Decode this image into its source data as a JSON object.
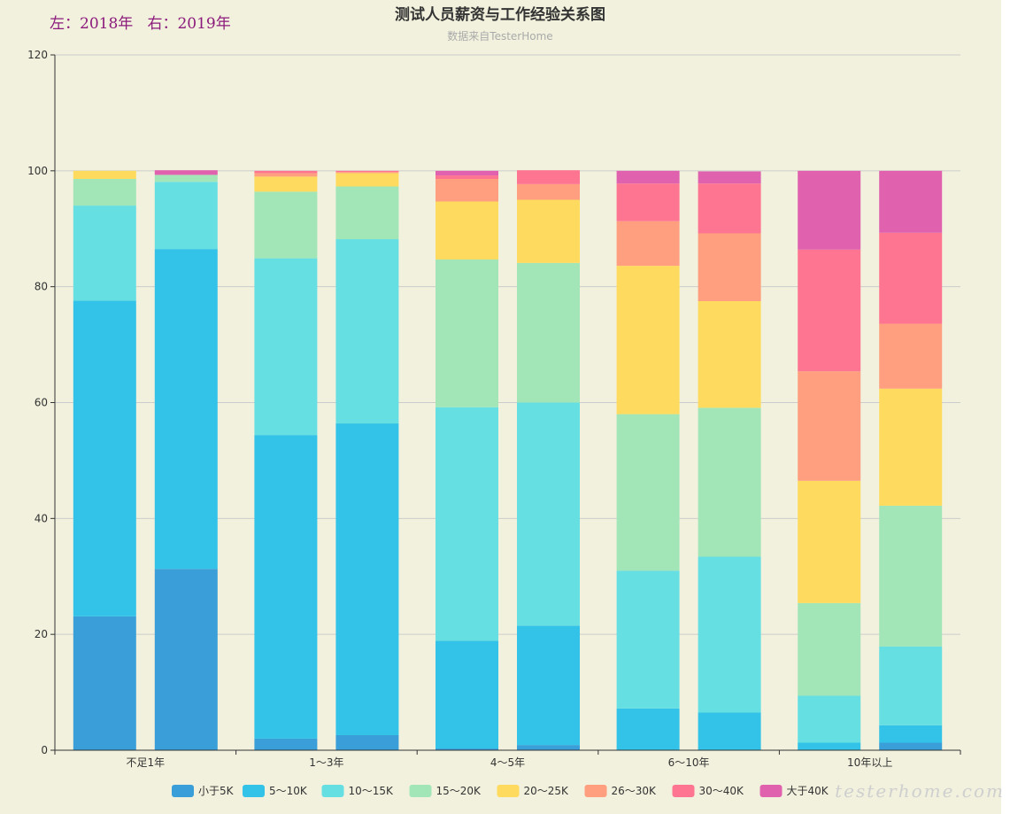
{
  "note": "左：2018年   右：2019年",
  "watermark": "testerhome.com",
  "chart_data": {
    "type": "bar",
    "stacked": true,
    "title": "测试人员薪资与工作经验关系图",
    "subtitle": "数据来自TesterHome",
    "categories": [
      "不足1年",
      "1～3年",
      "4～5年",
      "6～10年",
      "10年以上"
    ],
    "groups": [
      "2018",
      "2019"
    ],
    "ylim": [
      0,
      120
    ],
    "yticks": [
      0,
      20,
      40,
      60,
      80,
      100,
      120
    ],
    "grid": true,
    "legend_position": "bottom-center",
    "series": [
      {
        "name": "小于5K",
        "color": "#3a9fd8",
        "values_2018": [
          23.1,
          2.0,
          0.3,
          0.0,
          0.0
        ],
        "values_2019": [
          31.3,
          2.6,
          0.9,
          0.0,
          1.3
        ]
      },
      {
        "name": "5～10K",
        "color": "#34c3e8",
        "values_2018": [
          54.5,
          52.4,
          18.6,
          7.2,
          1.3
        ],
        "values_2019": [
          55.2,
          53.8,
          20.6,
          6.5,
          3.0
        ]
      },
      {
        "name": "10～15K",
        "color": "#66dfe3",
        "values_2018": [
          16.4,
          30.5,
          40.3,
          23.8,
          8.1
        ],
        "values_2019": [
          11.6,
          31.8,
          38.5,
          26.9,
          13.6
        ]
      },
      {
        "name": "15～20K",
        "color": "#a2e6b8",
        "values_2018": [
          4.6,
          11.5,
          25.5,
          27.0,
          16.0
        ],
        "values_2019": [
          1.2,
          9.1,
          24.1,
          25.7,
          24.3
        ]
      },
      {
        "name": "20～25K",
        "color": "#fedb5e",
        "values_2018": [
          1.4,
          2.6,
          10.0,
          25.6,
          21.1
        ],
        "values_2019": [
          0.0,
          2.3,
          10.9,
          18.4,
          20.2
        ]
      },
      {
        "name": "26～30K",
        "color": "#ff9f7f",
        "values_2018": [
          0.0,
          0.6,
          3.9,
          7.7,
          18.9
        ],
        "values_2019": [
          0.0,
          0.2,
          2.7,
          11.7,
          11.2
        ]
      },
      {
        "name": "30～40K",
        "color": "#fe7591",
        "values_2018": [
          0.0,
          0.4,
          0.6,
          6.5,
          21.0
        ],
        "values_2019": [
          0.0,
          0.2,
          2.4,
          8.6,
          15.7
        ]
      },
      {
        "name": "大于40K",
        "color": "#e062ae",
        "values_2018": [
          0.0,
          0.0,
          0.8,
          2.2,
          13.6
        ],
        "values_2019": [
          0.8,
          0.0,
          0.0,
          2.1,
          10.7
        ]
      }
    ]
  }
}
